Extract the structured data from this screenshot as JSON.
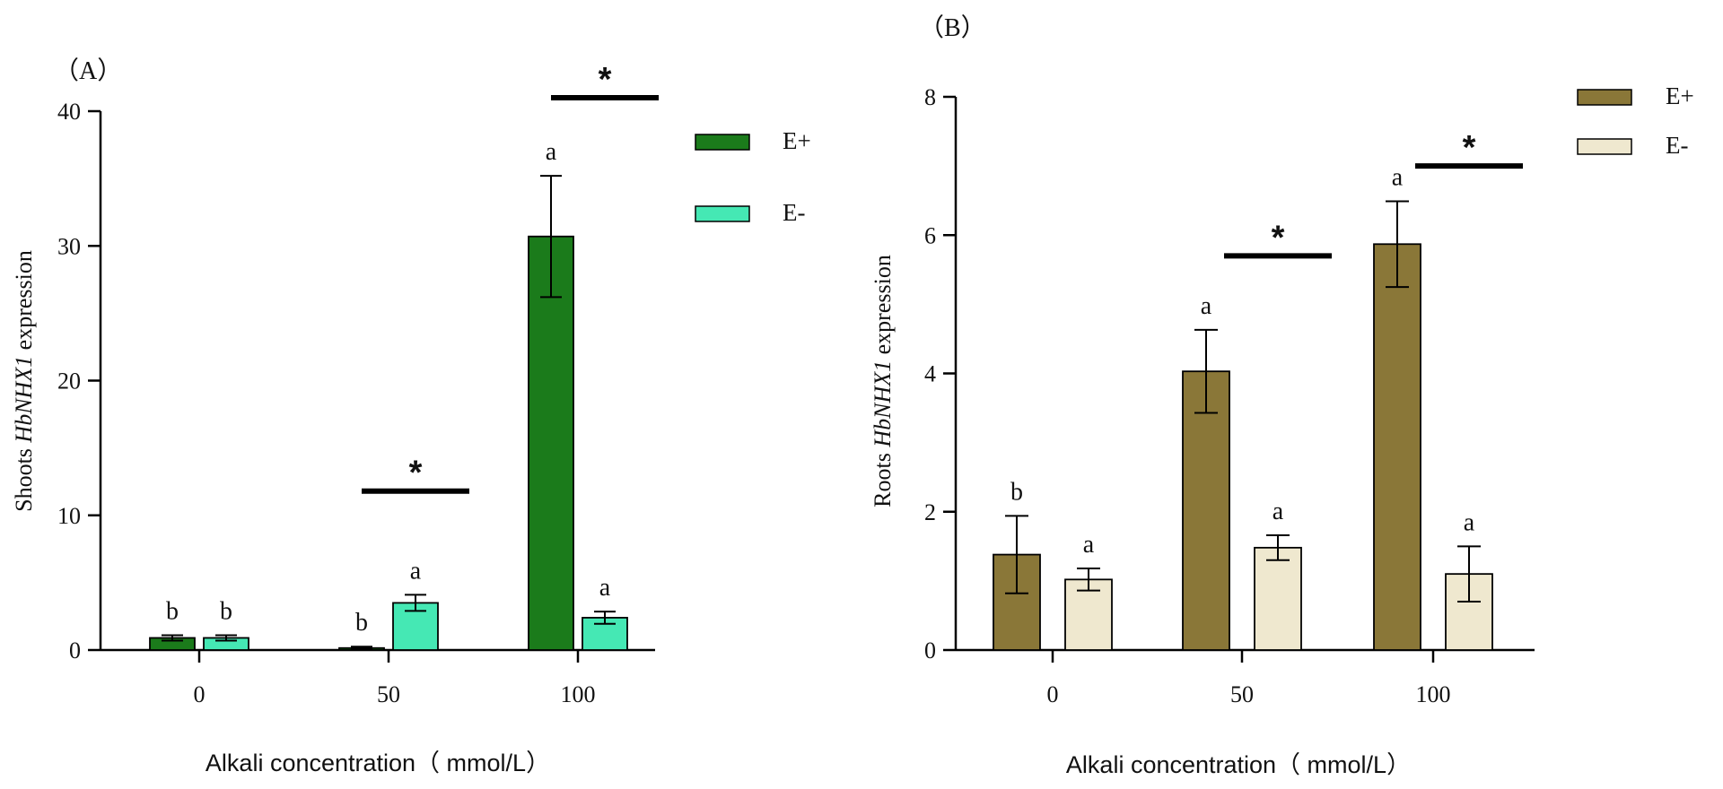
{
  "chart_data": [
    {
      "panel_label": "（A）",
      "type": "bar",
      "ylabel": {
        "prefix": "Shoots ",
        "gene": "HbNHX1",
        "suffix": " expression"
      },
      "xlabel": "Alkali concentration（ mmol/L）",
      "categories": [
        "0",
        "50",
        "100"
      ],
      "ylim": [
        0,
        40
      ],
      "yticks": [
        0,
        10,
        20,
        30,
        40
      ],
      "legend_position": "top-right",
      "series": [
        {
          "name": "E+",
          "color": "#1b7b1b",
          "values": [
            0.9,
            0.15,
            30.7
          ],
          "errors": [
            0.2,
            0.1,
            4.5
          ],
          "letters": [
            "b",
            "b",
            "a"
          ]
        },
        {
          "name": "E-",
          "color": "#45e8b4",
          "values": [
            0.9,
            3.5,
            2.4
          ],
          "errors": [
            0.2,
            0.6,
            0.45
          ],
          "letters": [
            "b",
            "a",
            "a"
          ]
        }
      ],
      "significance": [
        {
          "category": "50",
          "level": 11.8,
          "symbol": "*"
        },
        {
          "category": "100",
          "level": 41.0,
          "symbol": "*"
        }
      ]
    },
    {
      "panel_label": "（B）",
      "type": "bar",
      "ylabel": {
        "prefix": "Roots ",
        "gene": "HbNHX1",
        "suffix": " expression"
      },
      "xlabel": "Alkali concentration（ mmol/L）",
      "categories": [
        "0",
        "50",
        "100"
      ],
      "ylim": [
        0,
        8
      ],
      "yticks": [
        0,
        2,
        4,
        6,
        8
      ],
      "legend_position": "top-right",
      "series": [
        {
          "name": "E+",
          "color": "#8a7738",
          "values": [
            1.38,
            4.03,
            5.87
          ],
          "errors": [
            0.56,
            0.6,
            0.62
          ],
          "letters": [
            "b",
            "a",
            "a"
          ]
        },
        {
          "name": "E-",
          "color": "#efe8cf",
          "values": [
            1.02,
            1.48,
            1.1
          ],
          "errors": [
            0.16,
            0.18,
            0.4
          ],
          "letters": [
            "a",
            "a",
            "a"
          ]
        }
      ],
      "significance": [
        {
          "category": "50",
          "level": 5.7,
          "symbol": "*"
        },
        {
          "category": "100",
          "level": 7.0,
          "symbol": "*"
        }
      ]
    }
  ]
}
